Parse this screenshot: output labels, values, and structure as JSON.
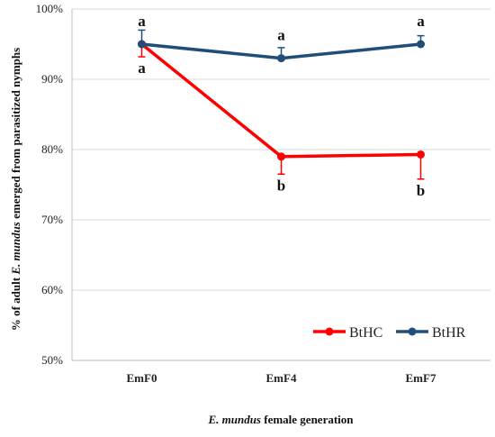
{
  "chart_data": {
    "type": "line",
    "categories": [
      "EmF0",
      "EmF4",
      "EmF7"
    ],
    "ylim": [
      50,
      100
    ],
    "yticks": [
      "50%",
      "60%",
      "70%",
      "80%",
      "90%",
      "100%"
    ],
    "ytick_values": [
      50,
      60,
      70,
      80,
      90,
      100
    ],
    "grid": "horizontal",
    "legend_position": "bottom-right",
    "xlabel_italic": "E. mundus",
    "xlabel_rest": " female generation",
    "ylabel_pre": "% of adult ",
    "ylabel_italic": "E. mundus",
    "ylabel_post": " emerged  from parasitized nymphs",
    "series": [
      {
        "name": "BtHC",
        "color": "#ff0000",
        "values": [
          95.0,
          79.0,
          79.3
        ],
        "err_low": [
          1.8,
          2.5,
          3.5
        ],
        "err_high": [
          0,
          0,
          0
        ],
        "sig_labels": [
          "a",
          "b",
          "b"
        ]
      },
      {
        "name": "BtHR",
        "color": "#1f4e79",
        "values": [
          95.0,
          93.0,
          95.0
        ],
        "err_low": [
          0,
          0,
          0
        ],
        "err_high": [
          2.0,
          1.5,
          1.2
        ],
        "sig_labels": [
          "a",
          "a",
          "a"
        ]
      }
    ]
  }
}
